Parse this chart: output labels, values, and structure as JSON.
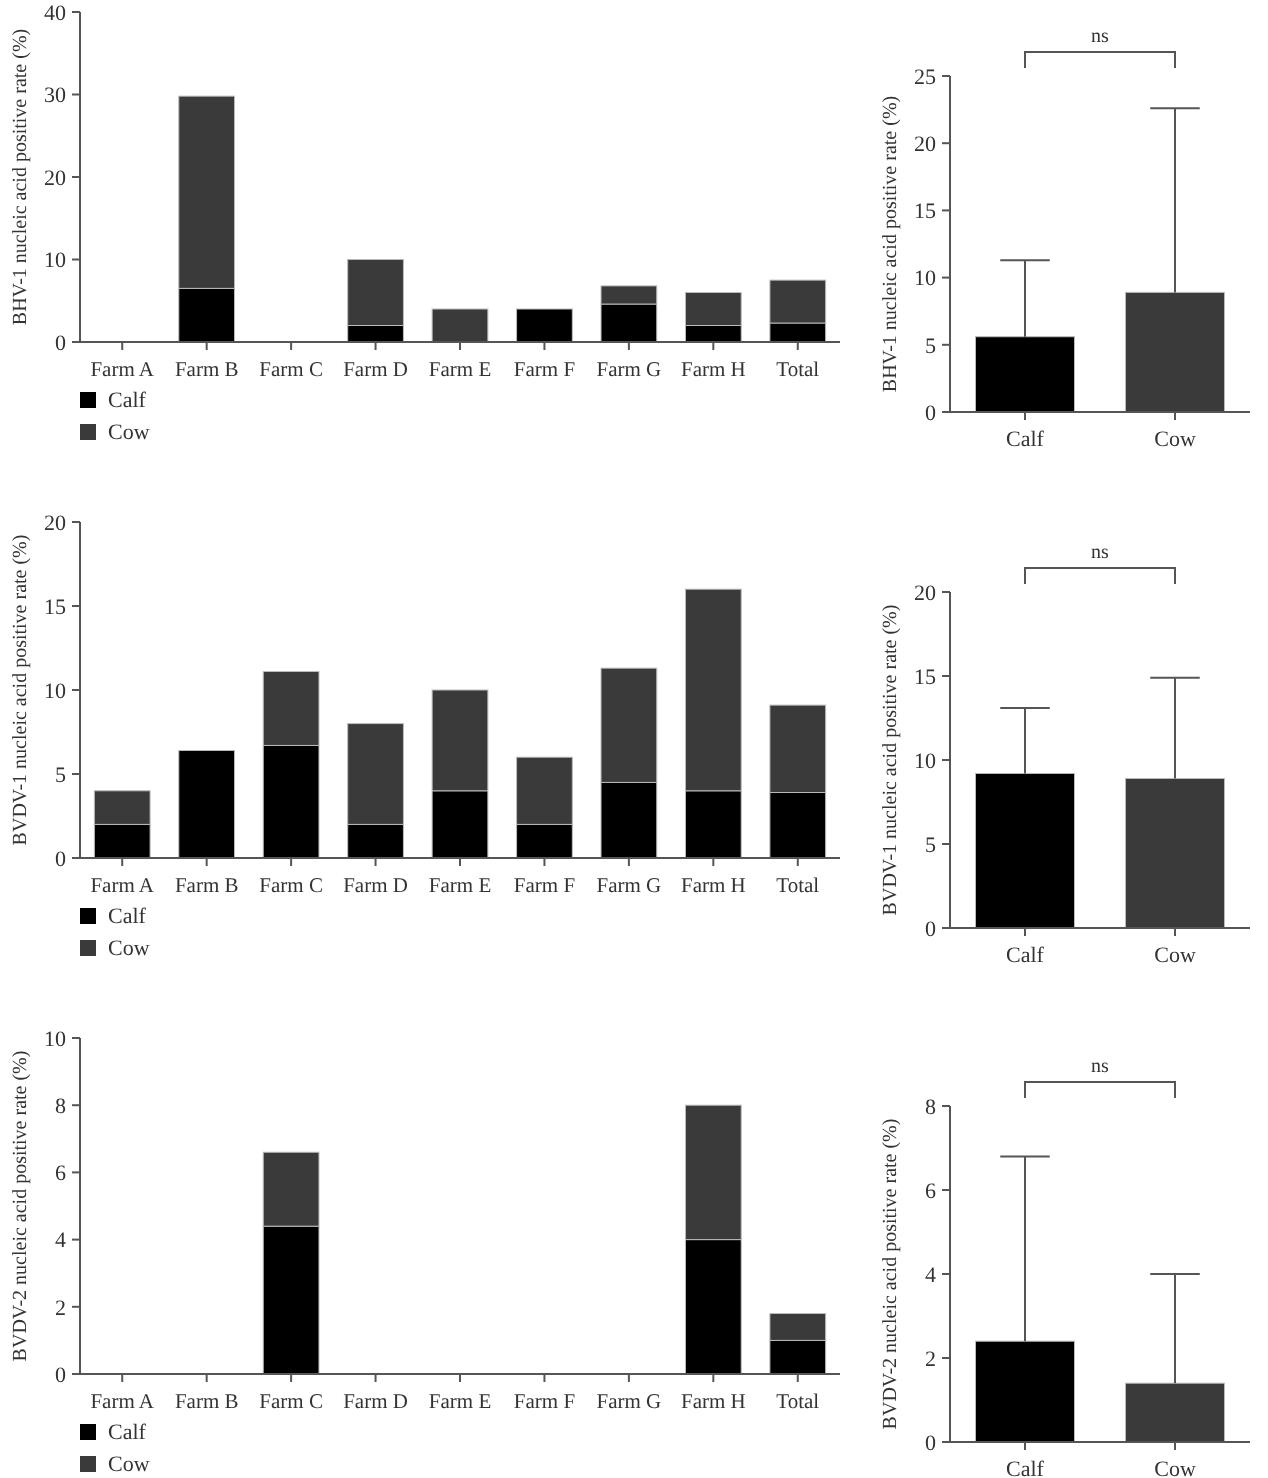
{
  "chart_data": [
    {
      "type": "bar",
      "stacked": true,
      "ylabel": "BHV-1 nucleic acid positive rate (%)",
      "categories": [
        "Farm A",
        "Farm B",
        "Farm C",
        "Farm D",
        "Farm E",
        "Farm F",
        "Farm G",
        "Farm H",
        "Total"
      ],
      "ylim": [
        0,
        40
      ],
      "yticks": [
        0,
        10,
        20,
        30,
        40
      ],
      "legend": "bottom left",
      "series": [
        {
          "name": "Calf",
          "color": "#000000",
          "values": [
            0,
            6.5,
            0,
            2,
            0,
            4,
            4.6,
            2,
            2.3
          ]
        },
        {
          "name": "Cow",
          "color": "#3a3a3a",
          "values": [
            0,
            23.3,
            0,
            8,
            4,
            0,
            2.2,
            4,
            5.2
          ]
        }
      ]
    },
    {
      "type": "bar",
      "ylabel": "BHV-1 nucleic acid positive rate (%)",
      "categories": [
        "Calf",
        "Cow"
      ],
      "values": [
        5.6,
        8.9
      ],
      "colors": [
        "#000000",
        "#3a3a3a"
      ],
      "errors": [
        [
          5.6,
          11.3
        ],
        [
          8.9,
          22.6
        ]
      ],
      "ylim": [
        0,
        25
      ],
      "yticks": [
        0,
        5,
        10,
        15,
        20,
        25
      ],
      "annotations": [
        "ns"
      ]
    },
    {
      "type": "bar",
      "stacked": true,
      "ylabel": "BVDV-1 nucleic acid positive rate (%)",
      "categories": [
        "Farm A",
        "Farm B",
        "Farm C",
        "Farm D",
        "Farm E",
        "Farm F",
        "Farm G",
        "Farm H",
        "Total"
      ],
      "ylim": [
        0,
        20
      ],
      "yticks": [
        0,
        5,
        10,
        15,
        20
      ],
      "legend": "bottom left",
      "series": [
        {
          "name": "Calf",
          "color": "#000000",
          "values": [
            2,
            6.4,
            6.7,
            2,
            4,
            2,
            4.5,
            4,
            3.9
          ]
        },
        {
          "name": "Cow",
          "color": "#3a3a3a",
          "values": [
            2,
            0,
            4.4,
            6,
            6,
            4,
            6.8,
            12,
            5.2
          ]
        }
      ]
    },
    {
      "type": "bar",
      "ylabel": "BVDV-1 nucleic acid positive rate (%)",
      "categories": [
        "Calf",
        "Cow"
      ],
      "values": [
        9.2,
        8.9
      ],
      "colors": [
        "#000000",
        "#3a3a3a"
      ],
      "errors": [
        [
          9.2,
          13.1
        ],
        [
          8.9,
          14.9
        ]
      ],
      "ylim": [
        0,
        20
      ],
      "yticks": [
        0,
        5,
        10,
        15,
        20
      ],
      "annotations": [
        "ns"
      ]
    },
    {
      "type": "bar",
      "stacked": true,
      "ylabel": "BVDV-2 nucleic acid positive rate (%)",
      "categories": [
        "Farm A",
        "Farm B",
        "Farm C",
        "Farm D",
        "Farm E",
        "Farm F",
        "Farm G",
        "Farm H",
        "Total"
      ],
      "ylim": [
        0,
        10
      ],
      "yticks": [
        0,
        2,
        4,
        6,
        8,
        10
      ],
      "legend": "bottom left",
      "series": [
        {
          "name": "Calf",
          "color": "#000000",
          "values": [
            0,
            0,
            4.4,
            0,
            0,
            0,
            0,
            4,
            1.0
          ]
        },
        {
          "name": "Cow",
          "color": "#3a3a3a",
          "values": [
            0,
            0,
            2.2,
            0,
            0,
            0,
            0,
            4,
            0.8
          ]
        }
      ]
    },
    {
      "type": "bar",
      "ylabel": "BVDV-2 nucleic acid positive rate (%)",
      "categories": [
        "Calf",
        "Cow"
      ],
      "values": [
        2.4,
        1.4
      ],
      "colors": [
        "#000000",
        "#3a3a3a"
      ],
      "errors": [
        [
          2.4,
          6.8
        ],
        [
          1.4,
          4.0
        ]
      ],
      "ylim": [
        0,
        8
      ],
      "yticks": [
        0,
        2,
        4,
        6,
        8
      ],
      "annotations": [
        "ns"
      ]
    }
  ]
}
